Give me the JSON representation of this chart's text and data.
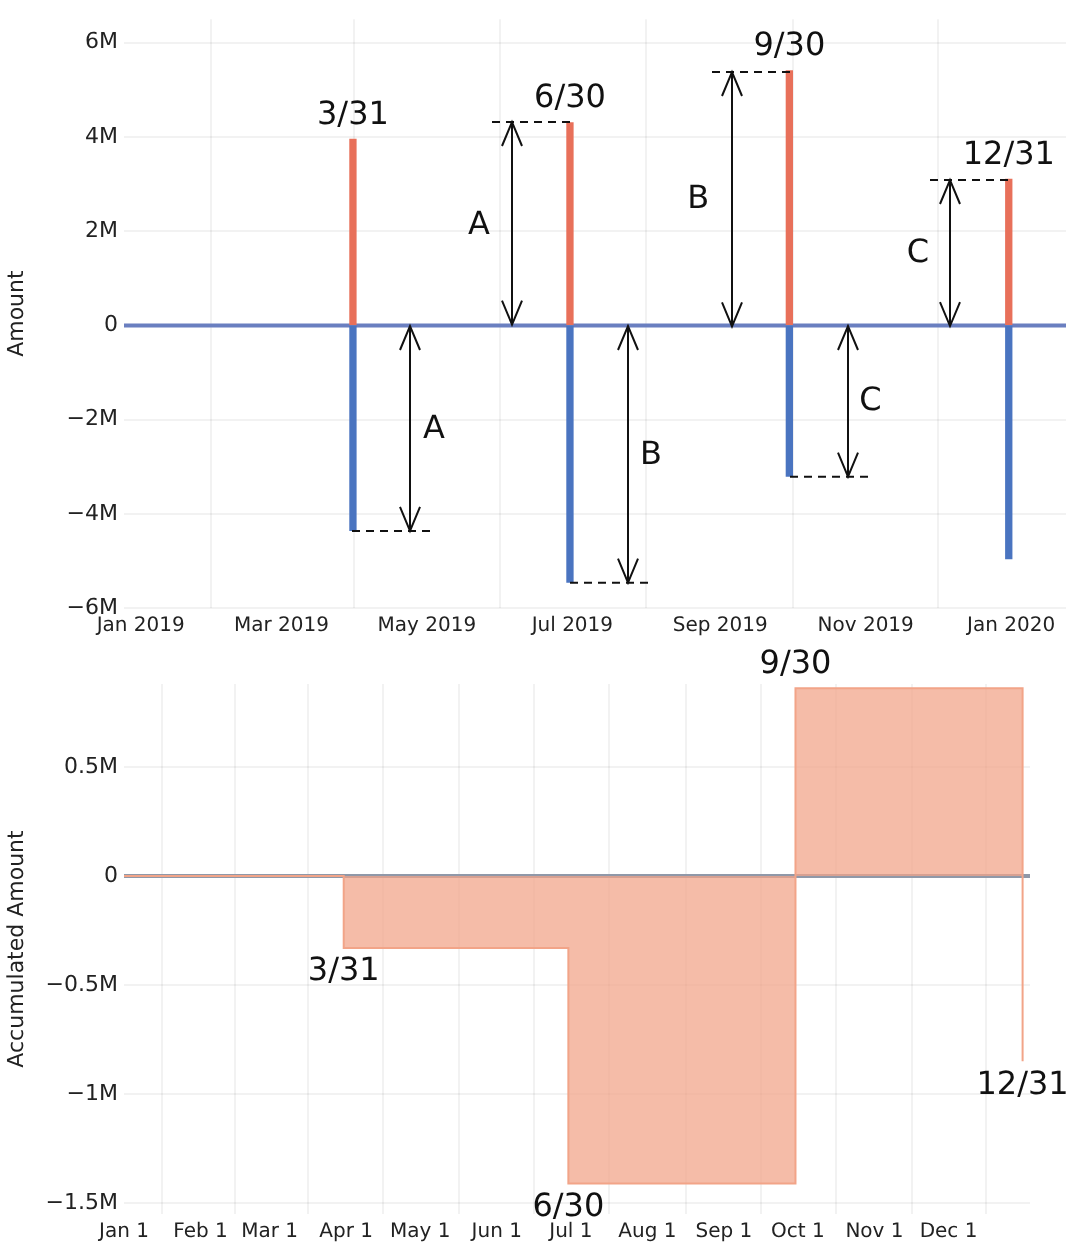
{
  "chart_data": [
    {
      "type": "bar",
      "stacked": true,
      "ylabel": "Amount",
      "x": [
        "2019-03-31",
        "2019-06-30",
        "2019-09-30",
        "2019-12-31"
      ],
      "series": [
        {
          "color": "#e8705a",
          "values": [
            3950000,
            4300000,
            5400000,
            3100000
          ]
        },
        {
          "color": "#4a74c0",
          "values": [
            -4350000,
            -5450000,
            -3200000,
            -4950000
          ]
        }
      ],
      "xlim": [
        "2018-12-25",
        "2020-01-24"
      ],
      "xticks": [
        {
          "value": "2019-01",
          "label": "Jan 2019"
        },
        {
          "value": "2019-03",
          "label": "Mar 2019"
        },
        {
          "value": "2019-05",
          "label": "May 2019"
        },
        {
          "value": "2019-07",
          "label": "Jul 2019"
        },
        {
          "value": "2019-09",
          "label": "Sep 2019"
        },
        {
          "value": "2019-11",
          "label": "Nov 2019"
        },
        {
          "value": "2020-01",
          "label": "Jan 2020"
        }
      ],
      "ylim": [
        -6000000,
        6500000
      ],
      "yticks": [
        {
          "value": -6000000,
          "label": "−6M"
        },
        {
          "value": -4000000,
          "label": "−4M"
        },
        {
          "value": -2000000,
          "label": "−2M"
        },
        0,
        {
          "value": 2000000,
          "label": "2M"
        },
        {
          "value": 4000000,
          "label": "4M"
        },
        {
          "value": 6000000,
          "label": "6M"
        }
      ],
      "grid": true,
      "ref_lines": [
        {
          "axis": "y",
          "value": 0,
          "color": "#6a7fc0"
        }
      ],
      "annotations": [
        {
          "text": "3/31",
          "x": "2019-03-31",
          "y": 3950000
        },
        {
          "text": "6/30",
          "x": "2019-06-30",
          "y": 4300000
        },
        {
          "text": "9/30",
          "x": "2019-09-30",
          "y": 5400000
        },
        {
          "text": "12/31",
          "x": "2019-12-31",
          "y": 3100000
        },
        "A",
        "B",
        "C",
        "A",
        "B",
        "C"
      ]
    },
    {
      "type": "step",
      "ylabel": "Accumulated Amount",
      "x": [
        "2019-01-01",
        "2019-03-31",
        "2019-06-30",
        "2019-09-30",
        "2019-12-31"
      ],
      "series": [
        {
          "color": "#f2a488",
          "values": [
            0,
            -330000,
            -1410000,
            860000,
            -850000
          ]
        }
      ],
      "xlim": [
        "2019-01-01",
        "2020-01-03"
      ],
      "xticks": [
        {
          "value": "2019-01-01",
          "label": "Jan 1"
        },
        {
          "value": "2019-02-01",
          "label": "Feb 1"
        },
        {
          "value": "2019-03-01",
          "label": "Mar 1"
        },
        {
          "value": "2019-04-01",
          "label": "Apr 1"
        },
        {
          "value": "2019-05-01",
          "label": "May 1"
        },
        {
          "value": "2019-06-01",
          "label": "Jun 1"
        },
        {
          "value": "2019-07-01",
          "label": "Jul 1"
        },
        {
          "value": "2019-08-01",
          "label": "Aug 1"
        },
        {
          "value": "2019-09-01",
          "label": "Sep 1"
        },
        {
          "value": "2019-10-01",
          "label": "Oct 1"
        },
        {
          "value": "2019-11-01",
          "label": "Nov 1"
        },
        {
          "value": "2019-12-01",
          "label": "Dec 1"
        }
      ],
      "ylim": [
        -1550000,
        880000
      ],
      "yticks": [
        {
          "value": -1500000,
          "label": "−1.5M"
        },
        {
          "value": -1000000,
          "label": "−1M"
        },
        {
          "value": -500000,
          "label": "−0.5M"
        },
        0,
        {
          "value": 500000,
          "label": "0.5M"
        }
      ],
      "grid": true,
      "ref_lines": [
        {
          "axis": "y",
          "value": 0,
          "color": "#9098a8"
        }
      ],
      "annotations": [
        {
          "text": "3/31",
          "x": "2019-03-31",
          "y": -330000
        },
        {
          "text": "6/30",
          "x": "2019-06-30",
          "y": -1410000
        },
        {
          "text": "9/30",
          "x": "2019-09-30",
          "y": 860000
        },
        {
          "text": "12/31",
          "x": "2019-12-31",
          "y": -850000
        }
      ]
    }
  ]
}
